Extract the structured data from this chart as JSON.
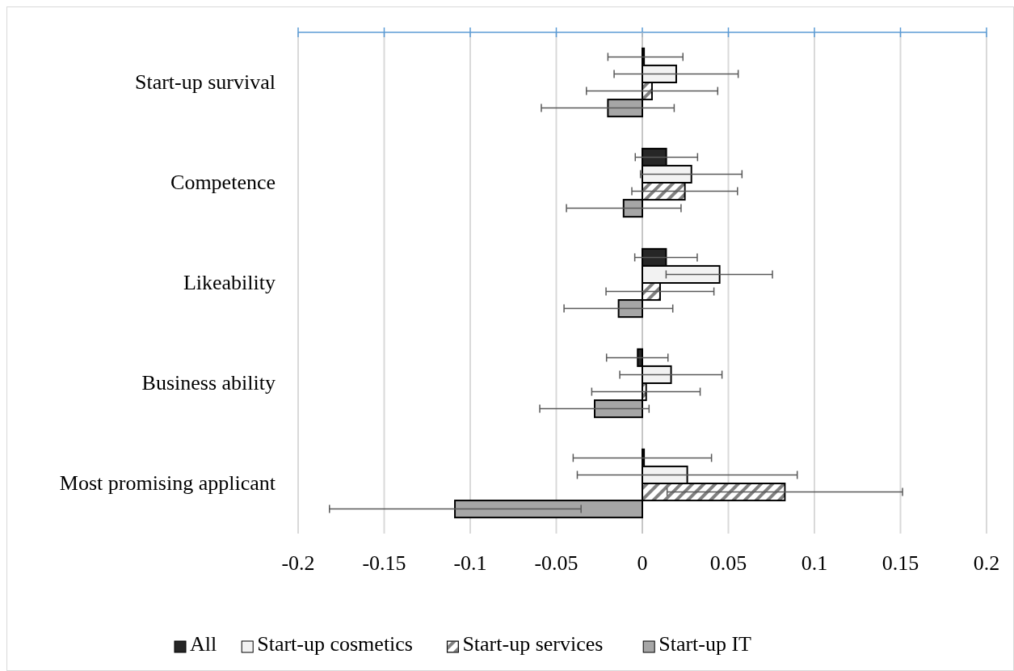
{
  "chart_data": {
    "type": "bar",
    "orientation": "horizontal",
    "categories": [
      "Start-up survival",
      "Competence",
      "Likeability",
      "Business ability",
      "Most promising applicant"
    ],
    "series": [
      {
        "name": "All",
        "color": "#262626",
        "values": [
          0.001,
          0.0139,
          0.0138,
          -0.0027,
          0.001
        ],
        "errors": [
          [
            -0.02,
            0.0236
          ],
          [
            -0.0041,
            0.0321
          ],
          [
            -0.0044,
            0.0319
          ],
          [
            -0.0208,
            0.0149
          ],
          [
            -0.0402,
            0.0402
          ]
        ]
      },
      {
        "name": "Start-up cosmetics",
        "color": "#f2f2f2",
        "values": [
          0.0197,
          0.0285,
          0.0449,
          0.0167,
          0.0261
        ],
        "errors": [
          [
            -0.0164,
            0.0557
          ],
          [
            -0.0011,
            0.0579
          ],
          [
            0.0138,
            0.0756
          ],
          [
            -0.0131,
            0.0463
          ],
          [
            -0.0378,
            0.09
          ]
        ]
      },
      {
        "name": "Start-up services",
        "color": "#808080",
        "values": [
          0.0056,
          0.0247,
          0.0103,
          0.0022,
          0.0828
        ],
        "errors": [
          [
            -0.0325,
            0.0438
          ],
          [
            -0.0061,
            0.0553
          ],
          [
            -0.0211,
            0.0416
          ],
          [
            -0.0294,
            0.0336
          ],
          [
            0.0144,
            0.1512
          ]
        ]
      },
      {
        "name": "Start-up IT",
        "color": "#a6a6a6",
        "values": [
          -0.02,
          -0.0109,
          -0.0138,
          -0.0277,
          -0.1089
        ],
        "errors": [
          [
            -0.0587,
            0.0185
          ],
          [
            -0.0441,
            0.0225
          ],
          [
            -0.0455,
            0.0177
          ],
          [
            -0.0596,
            0.0039
          ],
          [
            -0.1818,
            -0.0356
          ]
        ]
      }
    ],
    "xlim": [
      -0.2,
      0.2
    ],
    "xticks": [
      -0.2,
      -0.15,
      -0.1,
      -0.05,
      0,
      0.05,
      0.1,
      0.15,
      0.2
    ],
    "grid": "x",
    "legend": "bottom"
  }
}
